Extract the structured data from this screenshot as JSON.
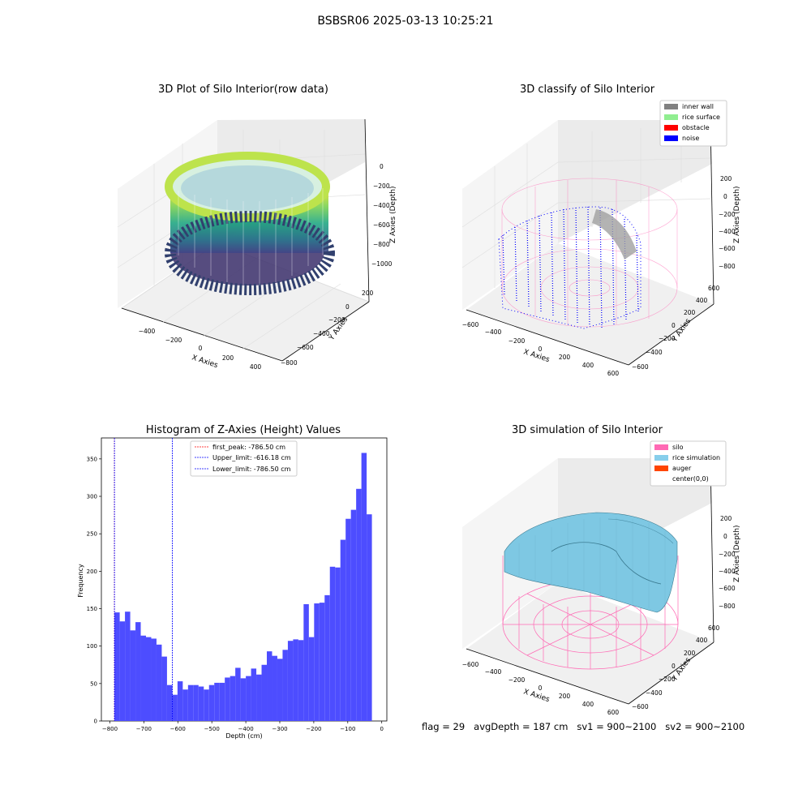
{
  "suptitle": "BSBSR06 2025-03-13 10:25:21",
  "footer": {
    "flag": "flag = 29",
    "avg": "avgDepth = 187 cm",
    "sv1": "sv1 = 900~2100",
    "sv2": "sv2 = 900~2100"
  },
  "colors": {
    "hist_bar": "#4d4dff",
    "first_peak": "#ff0000",
    "limit_line": "#0000ff",
    "inner_wall": "#808080",
    "rice_surface": "#90ee90",
    "obstacle": "#ff0000",
    "noise": "#0000ff",
    "silo": "#ff69b4",
    "rice_simulation": "#87ceeb",
    "auger": "#ff4500"
  },
  "chart_data": [
    {
      "type": "scatter",
      "projection": "3d",
      "title": "3D Plot of Silo Interior(row data)",
      "xlabel": "X Axies",
      "ylabel": "Y Axies",
      "zlabel": "Z Axies (Depth)",
      "x_ticks": [
        "−400",
        "−200",
        "0",
        "200",
        "400"
      ],
      "y_ticks": [
        "200",
        "0",
        "−200",
        "−400",
        "−600",
        "−800"
      ],
      "z_ticks": [
        "0",
        "−200",
        "−400",
        "−600",
        "−800",
        "−1000"
      ],
      "colormap": "viridis"
    },
    {
      "type": "scatter",
      "projection": "3d",
      "title": "3D classify of Silo Interior",
      "xlabel": "X Axies",
      "ylabel": "Y Axies",
      "zlabel": "Z Axies (Depth)",
      "x_ticks": [
        "−600",
        "−400",
        "−200",
        "0",
        "200",
        "400",
        "600"
      ],
      "y_ticks": [
        "600",
        "400",
        "200",
        "0",
        "−200",
        "−400",
        "−600"
      ],
      "z_ticks": [
        "200",
        "0",
        "−200",
        "−400",
        "−600",
        "−800"
      ],
      "legend": [
        "inner wall",
        "rice surface",
        "obstacle",
        "noise"
      ],
      "legend_position": "top-right"
    },
    {
      "type": "bar",
      "title": "Histogram of Z-Axies (Height) Values",
      "xlabel": "Depth (cm)",
      "ylabel": "Frequency",
      "xlim": [
        -825,
        15
      ],
      "ylim": [
        0,
        378
      ],
      "x_ticks": [
        "−800",
        "−700",
        "−600",
        "−500",
        "−400",
        "−300",
        "−200",
        "−100",
        "0"
      ],
      "x_tick_values": [
        -800,
        -700,
        -600,
        -500,
        -400,
        -300,
        -200,
        -100,
        0
      ],
      "y_ticks": [
        "0",
        "50",
        "100",
        "150",
        "200",
        "250",
        "300",
        "350"
      ],
      "y_tick_values": [
        0,
        50,
        100,
        150,
        200,
        250,
        300,
        350
      ],
      "bin_start": -786.5,
      "bin_width": 15.46,
      "values": [
        145,
        133,
        146,
        121,
        132,
        114,
        112,
        110,
        102,
        86,
        48,
        35,
        53,
        42,
        48,
        48,
        46,
        42,
        48,
        51,
        51,
        58,
        60,
        71,
        57,
        60,
        70,
        62,
        75,
        93,
        87,
        83,
        95,
        107,
        109,
        108,
        156,
        112,
        157,
        158,
        168,
        206,
        205,
        242,
        270,
        282,
        310,
        358,
        276
      ],
      "lines": [
        {
          "label": "first_peak: -786.50 cm",
          "x": -786.5
        },
        {
          "label": "Upper_limit: -616.18 cm",
          "x": -616.18
        },
        {
          "label": "Lower_limit: -786.50 cm",
          "x": -786.5
        }
      ],
      "legend_position": "top-center"
    },
    {
      "type": "surface",
      "projection": "3d",
      "title": "3D simulation of Silo Interior",
      "xlabel": "X Axies",
      "ylabel": "Y Axies",
      "zlabel": "Z Axies (Depth)",
      "x_ticks": [
        "−600",
        "−400",
        "−200",
        "0",
        "200",
        "400",
        "600"
      ],
      "y_ticks": [
        "600",
        "400",
        "200",
        "0",
        "−200",
        "−400",
        "−600"
      ],
      "z_ticks": [
        "200",
        "0",
        "−200",
        "−400",
        "−600",
        "−800"
      ],
      "legend": [
        "silo",
        "rice simulation",
        "auger",
        "center(0,0)"
      ],
      "legend_position": "top-right"
    }
  ]
}
